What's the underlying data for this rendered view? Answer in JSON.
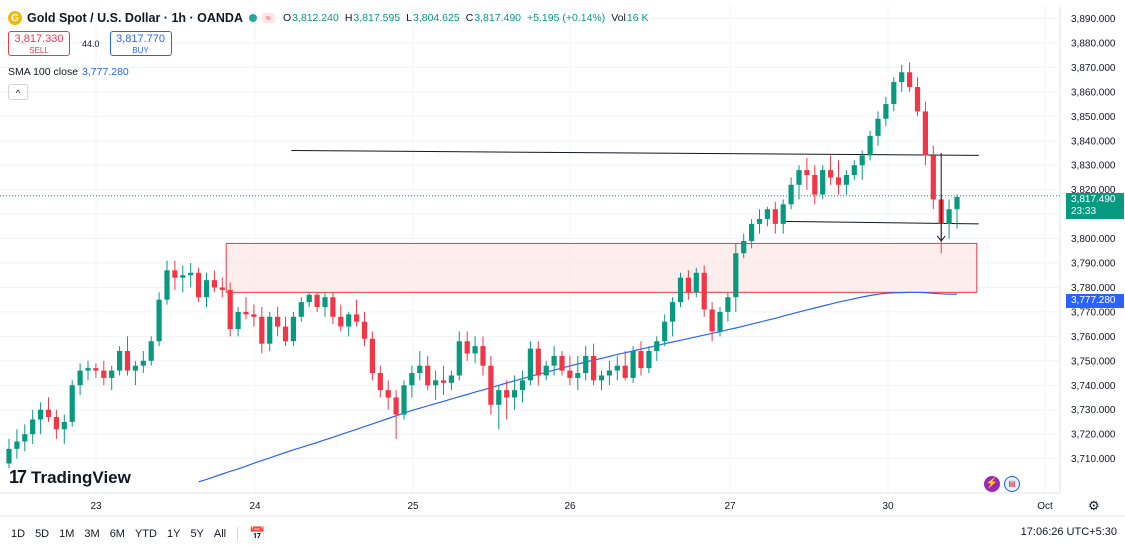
{
  "header": {
    "symbol": "Gold Spot / U.S. Dollar · 1h · OANDA",
    "logo_icon": "gold-coin-icon",
    "no_label": "≈",
    "o_label": "O",
    "o_value": "3,812.240",
    "h_label": "H",
    "h_value": "3,817.595",
    "l_label": "L",
    "l_value": "3,804.625",
    "c_label": "C",
    "c_value": "3,817.490",
    "change": "+5.195 (+0.14%)",
    "vol_label": "Vol",
    "vol_value": "16 K"
  },
  "trade": {
    "sell_price": "3,817.330",
    "sell_label": "SELL",
    "spread": "44.0",
    "buy_price": "3,817.770",
    "buy_label": "BUY"
  },
  "indicator": {
    "label": "SMA 100 close",
    "value": "3,777.280"
  },
  "collapse_icon": "^",
  "price_label": {
    "value": "3,817.490",
    "countdown": "23:33"
  },
  "sma_label": "3,777.280",
  "branding": {
    "text": "TradingView",
    "icon": "tradingview-logo-icon"
  },
  "timeframes": [
    "1D",
    "5D",
    "1M",
    "3M",
    "6M",
    "YTD",
    "1Y",
    "5Y",
    "All"
  ],
  "calendar_icon": "calendar-icon",
  "clock": "17:06:26 UTC+5:30",
  "colors": {
    "up": "#089981",
    "down": "#f23645",
    "sma": "#2962ff",
    "zone_fill": "#fde8e8",
    "zone_border": "#f23645"
  },
  "chart_data": {
    "type": "candlestick",
    "title": "Gold Spot / U.S. Dollar · 1h · OANDA",
    "xlabel": "",
    "ylabel": "",
    "x_ticks": [
      "23",
      "24",
      "25",
      "26",
      "27",
      "30",
      "Oct"
    ],
    "y_ticks": [
      "3,890.000",
      "3,880.000",
      "3,870.000",
      "3,860.000",
      "3,850.000",
      "3,840.000",
      "3,830.000",
      "3,820.000",
      "3,810.000",
      "3,800.000",
      "3,790.000",
      "3,780.000",
      "3,770.000",
      "3,760.000",
      "3,750.000",
      "3,740.000",
      "3,730.000",
      "3,720.000",
      "3,710.000"
    ],
    "ylim": [
      3706,
      3891
    ],
    "grid": true,
    "last_price": 3817.49,
    "candles": [
      [
        3708,
        3718,
        3706,
        3714
      ],
      [
        3714,
        3722,
        3710,
        3717
      ],
      [
        3717,
        3724,
        3713,
        3720
      ],
      [
        3720,
        3730,
        3716,
        3726
      ],
      [
        3726,
        3733,
        3720,
        3730
      ],
      [
        3730,
        3735,
        3725,
        3727
      ],
      [
        3727,
        3730,
        3718,
        3722
      ],
      [
        3722,
        3728,
        3716,
        3725
      ],
      [
        3725,
        3742,
        3723,
        3740
      ],
      [
        3740,
        3749,
        3736,
        3746
      ],
      [
        3746,
        3750,
        3742,
        3747
      ],
      [
        3747,
        3749,
        3743,
        3746
      ],
      [
        3746,
        3750,
        3740,
        3743
      ],
      [
        3743,
        3748,
        3738,
        3746
      ],
      [
        3746,
        3756,
        3744,
        3754
      ],
      [
        3754,
        3760,
        3744,
        3746
      ],
      [
        3746,
        3750,
        3740,
        3748
      ],
      [
        3748,
        3754,
        3745,
        3750
      ],
      [
        3750,
        3760,
        3748,
        3758
      ],
      [
        3758,
        3778,
        3756,
        3775
      ],
      [
        3775,
        3791,
        3773,
        3787
      ],
      [
        3787,
        3791,
        3779,
        3784
      ],
      [
        3784,
        3789,
        3778,
        3785
      ],
      [
        3785,
        3790,
        3780,
        3786
      ],
      [
        3786,
        3788,
        3774,
        3776
      ],
      [
        3776,
        3786,
        3772,
        3783
      ],
      [
        3783,
        3787,
        3778,
        3780
      ],
      [
        3780,
        3784,
        3776,
        3779
      ],
      [
        3779,
        3782,
        3760,
        3763
      ],
      [
        3763,
        3772,
        3760,
        3770
      ],
      [
        3770,
        3776,
        3767,
        3769
      ],
      [
        3769,
        3773,
        3764,
        3768
      ],
      [
        3768,
        3772,
        3753,
        3757
      ],
      [
        3757,
        3770,
        3754,
        3768
      ],
      [
        3768,
        3772,
        3760,
        3764
      ],
      [
        3764,
        3768,
        3756,
        3758
      ],
      [
        3758,
        3770,
        3756,
        3768
      ],
      [
        3768,
        3776,
        3766,
        3774
      ],
      [
        3774,
        3778,
        3772,
        3777
      ],
      [
        3777,
        3778,
        3770,
        3772
      ],
      [
        3772,
        3778,
        3768,
        3776
      ],
      [
        3776,
        3778,
        3765,
        3768
      ],
      [
        3768,
        3773,
        3762,
        3764
      ],
      [
        3764,
        3770,
        3760,
        3769
      ],
      [
        3769,
        3775,
        3764,
        3766
      ],
      [
        3766,
        3770,
        3756,
        3759
      ],
      [
        3759,
        3762,
        3742,
        3745
      ],
      [
        3745,
        3748,
        3735,
        3738
      ],
      [
        3738,
        3742,
        3730,
        3735
      ],
      [
        3735,
        3738,
        3718,
        3728
      ],
      [
        3728,
        3742,
        3726,
        3740
      ],
      [
        3740,
        3748,
        3735,
        3745
      ],
      [
        3745,
        3754,
        3742,
        3748
      ],
      [
        3748,
        3752,
        3738,
        3740
      ],
      [
        3740,
        3746,
        3734,
        3742
      ],
      [
        3742,
        3748,
        3736,
        3741
      ],
      [
        3741,
        3746,
        3738,
        3744
      ],
      [
        3744,
        3762,
        3742,
        3758
      ],
      [
        3758,
        3762,
        3750,
        3753
      ],
      [
        3753,
        3760,
        3749,
        3756
      ],
      [
        3756,
        3760,
        3744,
        3748
      ],
      [
        3748,
        3752,
        3728,
        3732
      ],
      [
        3732,
        3740,
        3722,
        3738
      ],
      [
        3738,
        3742,
        3726,
        3735
      ],
      [
        3735,
        3744,
        3730,
        3738
      ],
      [
        3738,
        3746,
        3733,
        3742
      ],
      [
        3742,
        3758,
        3740,
        3755
      ],
      [
        3755,
        3758,
        3740,
        3744
      ],
      [
        3744,
        3750,
        3742,
        3748
      ],
      [
        3748,
        3756,
        3744,
        3752
      ],
      [
        3752,
        3754,
        3744,
        3746
      ],
      [
        3746,
        3752,
        3740,
        3743
      ],
      [
        3743,
        3752,
        3738,
        3745
      ],
      [
        3745,
        3756,
        3742,
        3752
      ],
      [
        3752,
        3757,
        3740,
        3742
      ],
      [
        3742,
        3746,
        3738,
        3744
      ],
      [
        3744,
        3750,
        3740,
        3746
      ],
      [
        3746,
        3752,
        3742,
        3748
      ],
      [
        3748,
        3754,
        3742,
        3743
      ],
      [
        3743,
        3756,
        3741,
        3754
      ],
      [
        3754,
        3758,
        3744,
        3747
      ],
      [
        3747,
        3756,
        3745,
        3754
      ],
      [
        3754,
        3760,
        3750,
        3758
      ],
      [
        3758,
        3769,
        3756,
        3766
      ],
      [
        3766,
        3776,
        3760,
        3774
      ],
      [
        3774,
        3786,
        3772,
        3784
      ],
      [
        3784,
        3787,
        3775,
        3778
      ],
      [
        3778,
        3788,
        3776,
        3786
      ],
      [
        3786,
        3789,
        3768,
        3771
      ],
      [
        3771,
        3774,
        3758,
        3762
      ],
      [
        3762,
        3772,
        3760,
        3770
      ],
      [
        3770,
        3778,
        3766,
        3776
      ],
      [
        3776,
        3798,
        3770,
        3794
      ],
      [
        3794,
        3802,
        3792,
        3799
      ],
      [
        3799,
        3808,
        3796,
        3806
      ],
      [
        3806,
        3812,
        3802,
        3808
      ],
      [
        3808,
        3813,
        3805,
        3812
      ],
      [
        3812,
        3815,
        3802,
        3806
      ],
      [
        3806,
        3816,
        3802,
        3814
      ],
      [
        3814,
        3825,
        3812,
        3822
      ],
      [
        3822,
        3830,
        3816,
        3828
      ],
      [
        3828,
        3833,
        3820,
        3826
      ],
      [
        3826,
        3830,
        3814,
        3818
      ],
      [
        3818,
        3830,
        3816,
        3828
      ],
      [
        3828,
        3834,
        3822,
        3825
      ],
      [
        3825,
        3832,
        3818,
        3822
      ],
      [
        3822,
        3828,
        3818,
        3826
      ],
      [
        3826,
        3832,
        3824,
        3830
      ],
      [
        3830,
        3836,
        3824,
        3834
      ],
      [
        3834,
        3844,
        3832,
        3842
      ],
      [
        3842,
        3852,
        3838,
        3849
      ],
      [
        3849,
        3858,
        3846,
        3855
      ],
      [
        3855,
        3866,
        3852,
        3864
      ],
      [
        3864,
        3871,
        3860,
        3868
      ],
      [
        3868,
        3872,
        3860,
        3862
      ],
      [
        3862,
        3866,
        3850,
        3852
      ],
      [
        3852,
        3856,
        3830,
        3834
      ],
      [
        3834,
        3838,
        3812,
        3816
      ],
      [
        3816,
        3818,
        3794,
        3806
      ],
      [
        3806,
        3816,
        3800,
        3812
      ],
      [
        3812,
        3818,
        3804,
        3817
      ]
    ],
    "sma100": [
      3700.5,
      3701.5,
      3702.6,
      3703.7,
      3704.8,
      3705.8,
      3706.9,
      3708.1,
      3709.2,
      3710.3,
      3711.4,
      3712.5,
      3713.6,
      3714.6,
      3715.6,
      3716.6,
      3717.7,
      3718.7,
      3719.8,
      3720.9,
      3722.0,
      3723.1,
      3724.2,
      3725.3,
      3726.4,
      3727.5,
      3728.6,
      3729.7,
      3730.6,
      3731.6,
      3732.5,
      3733.4,
      3734.4,
      3735.3,
      3736.2,
      3737.2,
      3738.1,
      3739.0,
      3740.0,
      3740.9,
      3741.8,
      3742.7,
      3743.6,
      3744.5,
      3745.3,
      3746.2,
      3747.0,
      3747.9,
      3748.7,
      3749.5,
      3750.3,
      3751.0,
      3751.8,
      3752.6,
      3753.3,
      3754.0,
      3754.8,
      3755.5,
      3756.2,
      3757.0,
      3757.7,
      3758.4,
      3759.1,
      3759.8,
      3760.5,
      3761.2,
      3761.9,
      3762.7,
      3763.4,
      3764.2,
      3765.0,
      3765.8,
      3766.6,
      3767.4,
      3768.3,
      3769.1,
      3770.0,
      3770.8,
      3771.6,
      3772.4,
      3773.2,
      3774.0,
      3774.7,
      3775.4,
      3776.1,
      3776.7,
      3777.3,
      3777.6,
      3777.8,
      3777.9,
      3778.0,
      3778.0,
      3777.9,
      3777.6,
      3777.4,
      3777.3,
      3777.28
    ]
  },
  "annotations": {
    "resistance_line": {
      "start_candle": 36,
      "end_candle": 122,
      "start_price": 3836,
      "end_price": 3834
    },
    "support_line": {
      "start_candle": 98,
      "end_candle": 122,
      "start_price": 3807,
      "end_price": 3806
    },
    "arrow": {
      "candle": 118,
      "from_price": 3835,
      "to_price": 3799
    },
    "zone": {
      "start_candle": 28,
      "end_candle": 122,
      "top": 3798,
      "bottom": 3778
    }
  }
}
